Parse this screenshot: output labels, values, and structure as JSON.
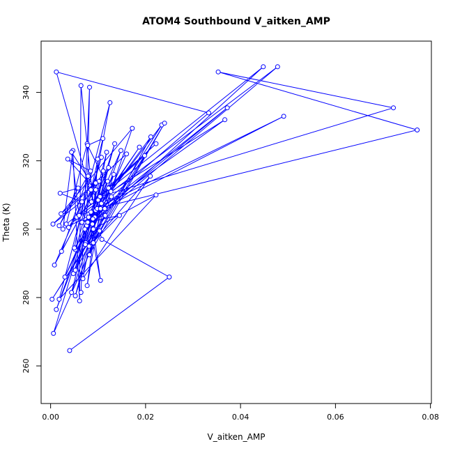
{
  "chart_data": {
    "type": "line",
    "title": "ATOM4 Southbound V_aitken_AMP",
    "xlabel": "V_aitken_AMP",
    "ylabel": "Theta (K)",
    "xlim": [
      -0.002,
      0.0802
    ],
    "ylim": [
      249,
      355
    ],
    "xticks": [
      0.0,
      0.02,
      0.04,
      0.06,
      0.08
    ],
    "xtick_labels": [
      "0.00",
      "0.02",
      "0.04",
      "0.06",
      "0.08"
    ],
    "yticks": [
      260,
      280,
      300,
      320,
      340
    ],
    "yticks_labels": [
      "260",
      "280",
      "300",
      "320",
      "340"
    ],
    "grid": false,
    "series_color": "#0000ff",
    "series": [
      {
        "values": [
          [
            0.004,
            264.5
          ],
          [
            0.025,
            286.0
          ],
          [
            0.0108,
            297.0
          ],
          [
            0.0103,
            299.5
          ],
          [
            0.0006,
            269.5
          ],
          [
            0.008,
            303.5
          ],
          [
            0.0105,
            285.0
          ],
          [
            0.0085,
            305.0
          ],
          [
            0.0012,
            276.5
          ],
          [
            0.0102,
            309.0
          ],
          [
            0.0033,
            301.5
          ],
          [
            0.0077,
            325.0
          ],
          [
            0.0064,
            281.5
          ],
          [
            0.0082,
            341.5
          ],
          [
            0.0076,
            301.0
          ],
          [
            0.0187,
            324.0
          ],
          [
            0.0095,
            305.5
          ],
          [
            0.0012,
            346.0
          ],
          [
            0.0333,
            334.0
          ],
          [
            0.0098,
            306.0
          ],
          [
            0.0772,
            329.0
          ],
          [
            0.0353,
            346.0
          ],
          [
            0.0722,
            335.5
          ],
          [
            0.0104,
            309.5
          ],
          [
            0.0448,
            347.5
          ],
          [
            0.0072,
            300.0
          ],
          [
            0.0478,
            347.5
          ],
          [
            0.0057,
            303.5
          ],
          [
            0.0491,
            333.0
          ],
          [
            0.0026,
            300.0
          ],
          [
            0.0047,
            323.0
          ],
          [
            0.0061,
            279.0
          ],
          [
            0.0064,
            342.0
          ],
          [
            0.0093,
            303.5
          ],
          [
            0.0372,
            335.5
          ],
          [
            0.0105,
            306.0
          ],
          [
            0.0367,
            332.0
          ],
          [
            0.0127,
            311.0
          ],
          [
            0.0234,
            330.5
          ],
          [
            0.0003,
            279.5
          ],
          [
            0.0198,
            321.5
          ],
          [
            0.0055,
            303.5
          ],
          [
            0.0222,
            325.0
          ],
          [
            0.0086,
            308.0
          ],
          [
            0.0125,
            337.0
          ],
          [
            0.0018,
            279.5
          ],
          [
            0.0222,
            310.0
          ],
          [
            0.009,
            300.0
          ],
          [
            0.0099,
            320.5
          ],
          [
            0.0088,
            301.5
          ],
          [
            0.0135,
            325.0
          ],
          [
            0.0048,
            287.0
          ],
          [
            0.016,
            322.0
          ],
          [
            0.0022,
            304.5
          ],
          [
            0.0172,
            329.5
          ],
          [
            0.0081,
            292.5
          ],
          [
            0.024,
            331.0
          ],
          [
            0.009,
            296.0
          ],
          [
            0.0211,
            327.0
          ],
          [
            0.0078,
            302.0
          ],
          [
            0.0145,
            304.0
          ],
          [
            0.0081,
            295.0
          ],
          [
            0.021,
            315.5
          ],
          [
            0.0068,
            285.5
          ],
          [
            0.0118,
            322.5
          ],
          [
            0.0044,
            281.5
          ],
          [
            0.0148,
            323.0
          ],
          [
            0.003,
            286.0
          ],
          [
            0.0133,
            316.0
          ],
          [
            0.0052,
            280.5
          ],
          [
            0.0122,
            318.0
          ],
          [
            0.0052,
            294.0
          ],
          [
            0.0107,
            321.0
          ],
          [
            0.0064,
            302.0
          ],
          [
            0.0115,
            304.0
          ],
          [
            0.0052,
            288.0
          ],
          [
            0.01,
            308.5
          ],
          [
            0.0077,
            283.5
          ],
          [
            0.0107,
            307.5
          ],
          [
            0.0074,
            296.0
          ],
          [
            0.0111,
            317.0
          ],
          [
            0.0082,
            292.5
          ],
          [
            0.0128,
            309.5
          ],
          [
            0.005,
            294.5
          ],
          [
            0.0079,
            315.5
          ],
          [
            0.0023,
            293.5
          ],
          [
            0.0102,
            314.0
          ],
          [
            0.0008,
            289.5
          ],
          [
            0.0066,
            308.0
          ],
          [
            0.002,
            310.5
          ],
          [
            0.0058,
            312.0
          ],
          [
            0.0018,
            301.0
          ],
          [
            0.0084,
            317.0
          ],
          [
            0.0036,
            320.5
          ],
          [
            0.0095,
            311.5
          ],
          [
            0.0044,
            322.5
          ],
          [
            0.006,
            304.0
          ],
          [
            0.0038,
            300.5
          ],
          [
            0.0095,
            313.5
          ],
          [
            0.0005,
            301.5
          ],
          [
            0.012,
            314.0
          ],
          [
            0.0073,
            295.5
          ],
          [
            0.0122,
            312.0
          ],
          [
            0.0078,
            324.5
          ],
          [
            0.011,
            326.5
          ],
          [
            0.0085,
            311.5
          ],
          [
            0.0114,
            306.0
          ],
          [
            0.0066,
            302.0
          ],
          [
            0.0089,
            303.0
          ]
        ]
      }
    ]
  }
}
